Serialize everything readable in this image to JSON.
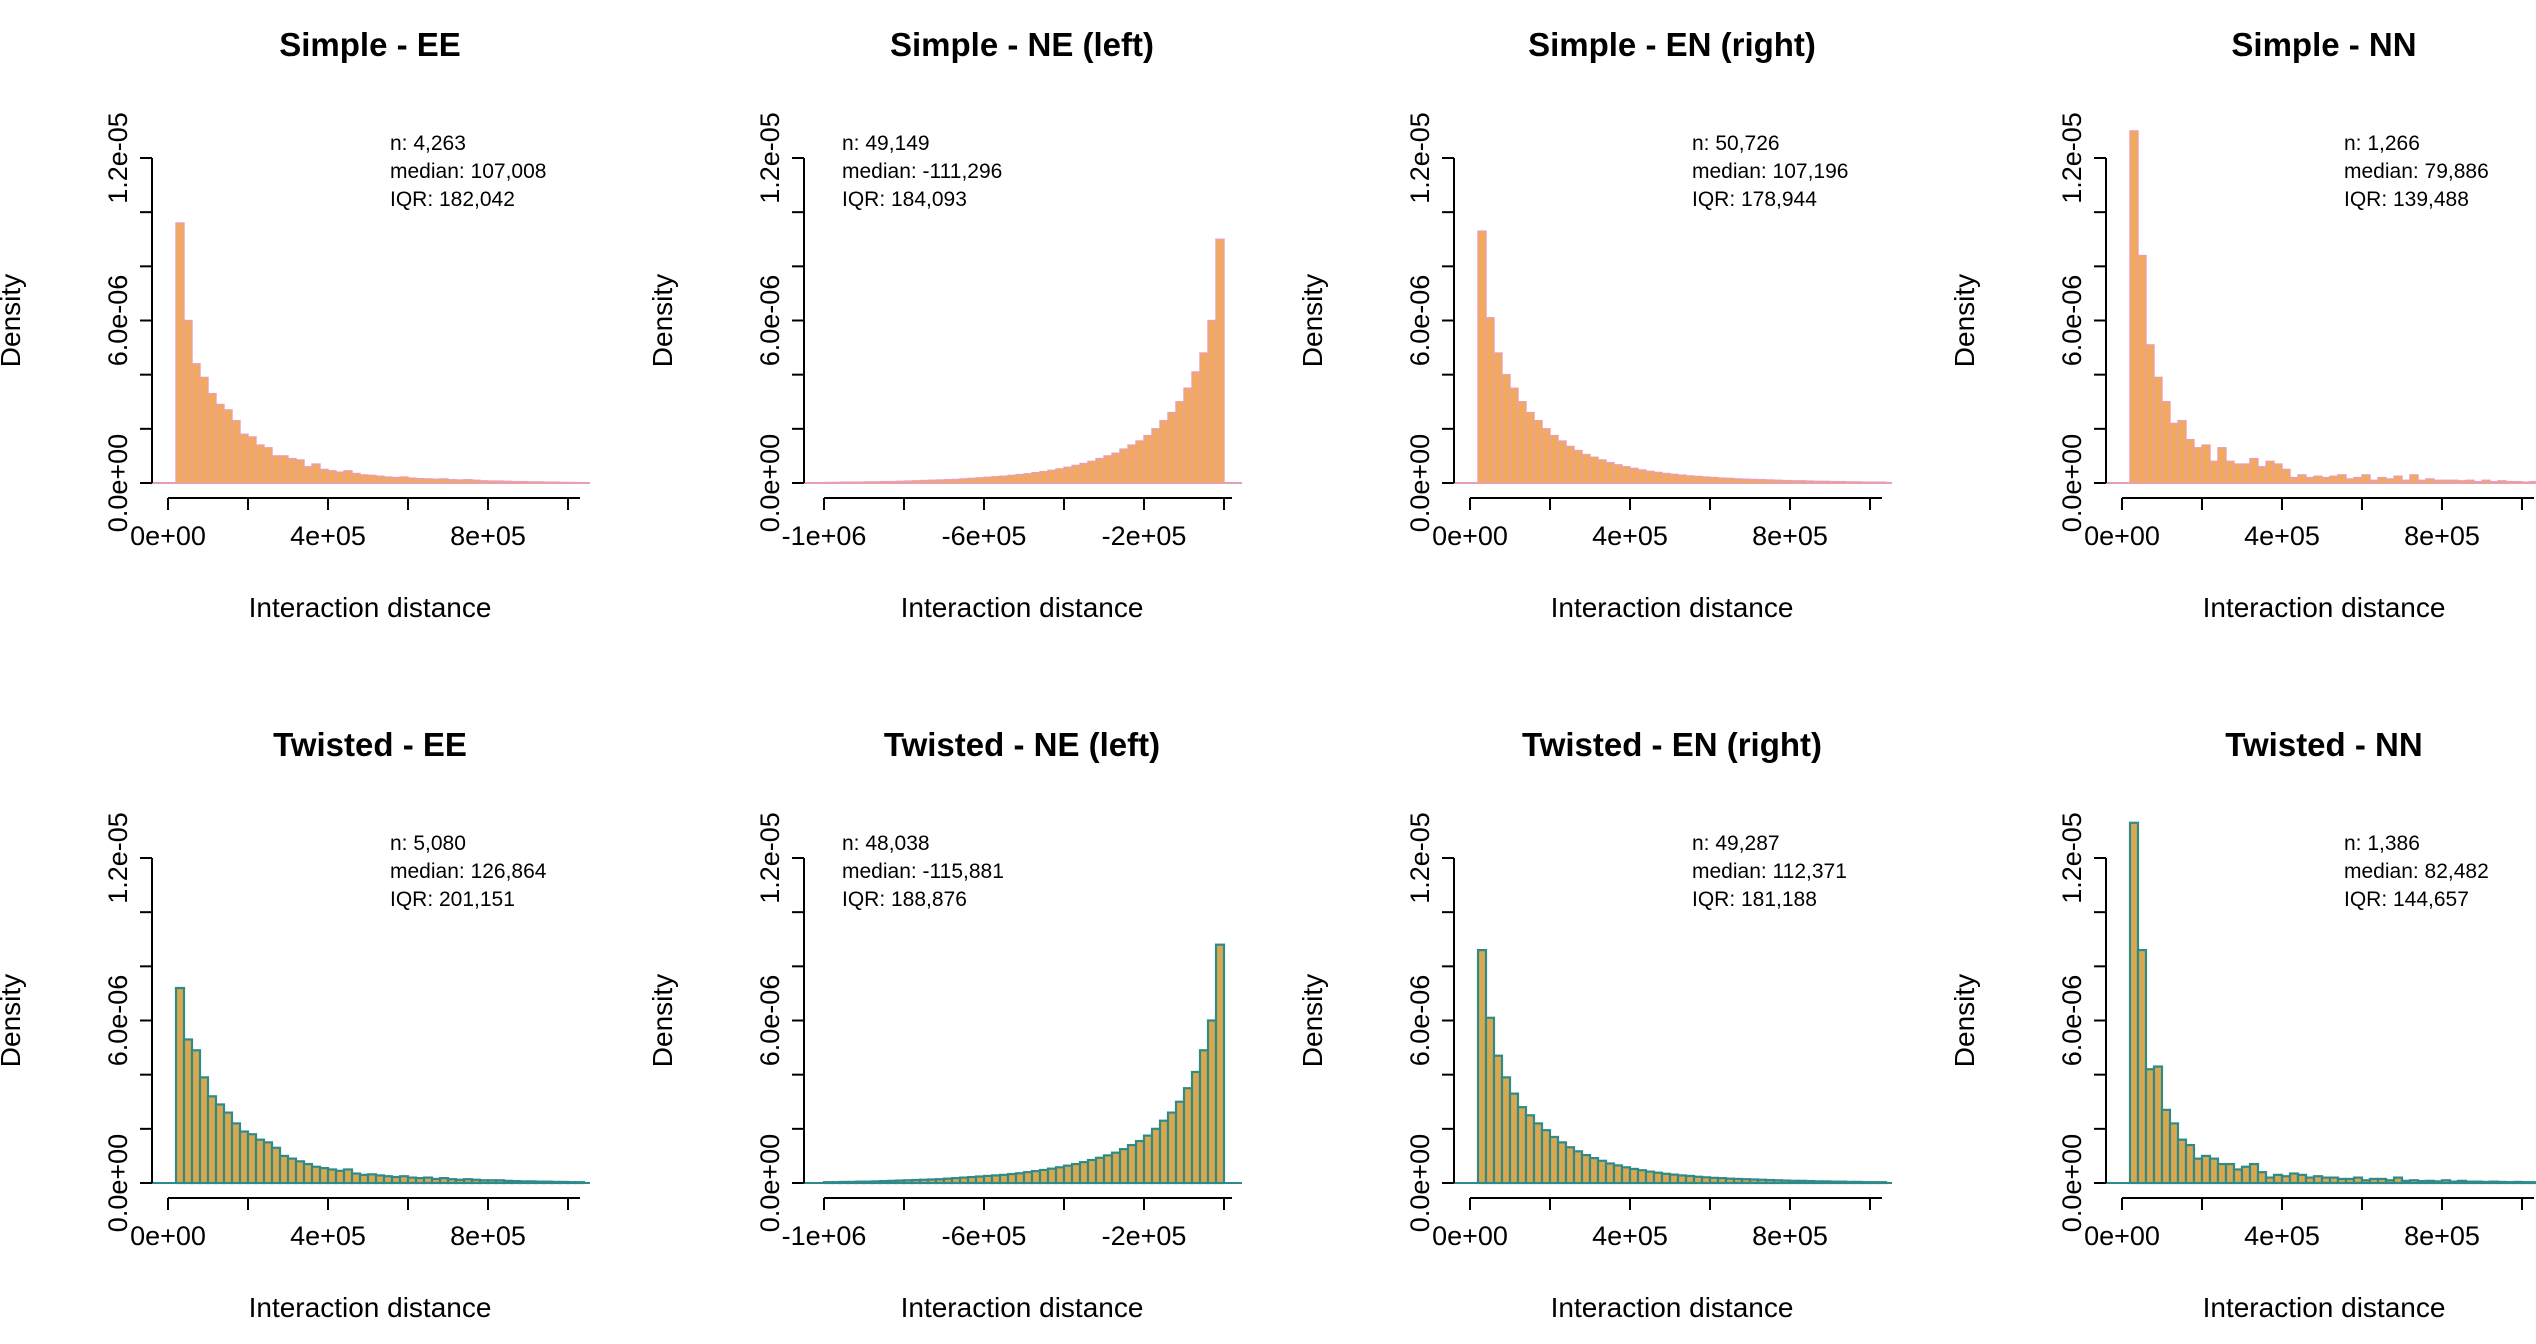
{
  "figure": {
    "chart_data": [
      {
        "type": "bar",
        "row": "simple",
        "title": "Simple - EE",
        "xlabel": "Interaction distance",
        "ylabel": "Density",
        "x_ticks": [
          0,
          400000,
          800000
        ],
        "x_tick_labels": [
          "0e+00",
          "4e+05",
          "8e+05"
        ],
        "xlim": [
          -20000,
          1030000
        ],
        "y_ticks": [
          0,
          2e-06,
          4e-06,
          6e-06,
          8e-06,
          1e-05,
          1.2e-05
        ],
        "y_tick_labels": [
          "0.0e+00",
          "",
          "",
          "6.0e-06",
          "",
          "",
          "1.2e-05"
        ],
        "ylim": [
          0,
          1.2e-05
        ],
        "bin_start": 20000,
        "bin_width": 20000,
        "values": [
          9.6e-06,
          6e-06,
          4.4e-06,
          3.9e-06,
          3.3e-06,
          2.9e-06,
          2.7e-06,
          2.3e-06,
          1.8e-06,
          1.7e-06,
          1.4e-06,
          1.3e-06,
          1e-06,
          1e-06,
          9e-07,
          8.5e-07,
          6e-07,
          7e-07,
          5e-07,
          4.5e-07,
          4e-07,
          4.5e-07,
          3.5e-07,
          3e-07,
          2.8e-07,
          2.5e-07,
          2.2e-07,
          2e-07,
          2.2e-07,
          1.8e-07,
          1.6e-07,
          1.5e-07,
          1.4e-07,
          1.5e-07,
          1.2e-07,
          1.1e-07,
          1.2e-07,
          1e-07,
          8e-08,
          7e-08,
          7e-08,
          6e-08,
          5e-08,
          5e-08,
          4e-08,
          4e-08,
          3e-08,
          3e-08,
          2e-08,
          2e-08,
          1e-08
        ],
        "stats": [
          "n: 4,263",
          "median: 107,008",
          "IQR: 182,042"
        ]
      },
      {
        "type": "bar",
        "row": "simple",
        "title": "Simple - NE (left)",
        "xlabel": "Interaction distance",
        "ylabel": "Density",
        "x_ticks": [
          -1000000,
          -600000,
          -200000
        ],
        "x_tick_labels": [
          "-1e+06",
          "-6e+05",
          "-2e+05"
        ],
        "xlim": [
          -1030000,
          20000
        ],
        "y_ticks": [
          0,
          2e-06,
          4e-06,
          6e-06,
          8e-06,
          1e-05,
          1.2e-05
        ],
        "y_tick_labels": [
          "0.0e+00",
          "",
          "",
          "6.0e-06",
          "",
          "",
          "1.2e-05"
        ],
        "ylim": [
          0,
          1.2e-05
        ],
        "bin_start": -1000000,
        "bin_width": 20000,
        "values": [
          2e-08,
          2e-08,
          3e-08,
          3e-08,
          3e-08,
          4e-08,
          4e-08,
          5e-08,
          5e-08,
          6e-08,
          7e-08,
          8e-08,
          9e-08,
          1e-07,
          1.1e-07,
          1.2e-07,
          1.3e-07,
          1.5e-07,
          1.7e-07,
          1.9e-07,
          2.1e-07,
          2.3e-07,
          2.5e-07,
          2.8e-07,
          3.1e-07,
          3.4e-07,
          3.8e-07,
          4.2e-07,
          4.7e-07,
          5.2e-07,
          5.8e-07,
          6.5e-07,
          7.2e-07,
          8e-07,
          9e-07,
          1e-06,
          1.1e-06,
          1.25e-06,
          1.4e-06,
          1.55e-06,
          1.75e-06,
          2e-06,
          2.3e-06,
          2.6e-06,
          3e-06,
          3.5e-06,
          4.1e-06,
          4.8e-06,
          6e-06,
          9e-06
        ],
        "stats": [
          "n: 49,149",
          "median: -111,296",
          "IQR: 184,093"
        ]
      },
      {
        "type": "bar",
        "row": "simple",
        "title": "Simple - EN (right)",
        "xlabel": "Interaction distance",
        "ylabel": "Density",
        "x_ticks": [
          0,
          400000,
          800000
        ],
        "x_tick_labels": [
          "0e+00",
          "4e+05",
          "8e+05"
        ],
        "xlim": [
          -20000,
          1030000
        ],
        "y_ticks": [
          0,
          2e-06,
          4e-06,
          6e-06,
          8e-06,
          1e-05,
          1.2e-05
        ],
        "y_tick_labels": [
          "0.0e+00",
          "",
          "",
          "6.0e-06",
          "",
          "",
          "1.2e-05"
        ],
        "ylim": [
          0,
          1.2e-05
        ],
        "bin_start": 20000,
        "bin_width": 20000,
        "values": [
          9.3e-06,
          6.1e-06,
          4.8e-06,
          4e-06,
          3.5e-06,
          3e-06,
          2.6e-06,
          2.3e-06,
          2e-06,
          1.75e-06,
          1.55e-06,
          1.35e-06,
          1.2e-06,
          1.05e-06,
          9.5e-07,
          8.5e-07,
          7.5e-07,
          6.7e-07,
          6e-07,
          5.4e-07,
          4.8e-07,
          4.3e-07,
          3.9e-07,
          3.5e-07,
          3.2e-07,
          2.9e-07,
          2.6e-07,
          2.4e-07,
          2.2e-07,
          2e-07,
          1.8e-07,
          1.7e-07,
          1.5e-07,
          1.4e-07,
          1.3e-07,
          1.2e-07,
          1.1e-07,
          1e-07,
          9e-08,
          8e-08,
          8e-08,
          7e-08,
          6e-08,
          6e-08,
          5e-08,
          5e-08,
          4e-08,
          4e-08,
          3e-08,
          3e-08,
          3e-08
        ],
        "stats": [
          "n: 50,726",
          "median: 107,196",
          "IQR: 178,944"
        ]
      },
      {
        "type": "bar",
        "row": "simple",
        "title": "Simple - NN",
        "xlabel": "Interaction distance",
        "ylabel": "Density",
        "x_ticks": [
          0,
          400000,
          800000
        ],
        "x_tick_labels": [
          "0e+00",
          "4e+05",
          "8e+05"
        ],
        "xlim": [
          -20000,
          1030000
        ],
        "y_ticks": [
          0,
          2e-06,
          4e-06,
          6e-06,
          8e-06,
          1e-05,
          1.2e-05
        ],
        "y_tick_labels": [
          "0.0e+00",
          "",
          "",
          "6.0e-06",
          "",
          "",
          "1.2e-05"
        ],
        "ylim": [
          0,
          1.2e-05
        ],
        "bin_start": 20000,
        "bin_width": 20000,
        "values": [
          1.3e-05,
          8.4e-06,
          5.1e-06,
          3.9e-06,
          3e-06,
          2.2e-06,
          2.3e-06,
          1.6e-06,
          1.3e-06,
          1.4e-06,
          8e-07,
          1.3e-06,
          8e-07,
          7e-07,
          7e-07,
          9e-07,
          6e-07,
          8e-07,
          7e-07,
          5e-07,
          2e-07,
          3e-07,
          2e-07,
          2.5e-07,
          2e-07,
          2.5e-07,
          3e-07,
          1.5e-07,
          2e-07,
          3e-07,
          1e-07,
          2e-07,
          1.5e-07,
          2.5e-07,
          1e-07,
          3e-07,
          1e-07,
          1.5e-07,
          1e-07,
          1e-07,
          1e-07,
          8e-08,
          1e-07,
          5e-08,
          1e-07,
          5e-08,
          8e-08,
          5e-08,
          5e-08,
          3e-08,
          5e-08
        ],
        "stats": [
          "n: 1,266",
          "median: 79,886",
          "IQR: 139,488"
        ]
      },
      {
        "type": "bar",
        "row": "twisted",
        "title": "Twisted - EE",
        "xlabel": "Interaction distance",
        "ylabel": "Density",
        "x_ticks": [
          0,
          400000,
          800000
        ],
        "x_tick_labels": [
          "0e+00",
          "4e+05",
          "8e+05"
        ],
        "xlim": [
          -20000,
          1030000
        ],
        "y_ticks": [
          0,
          2e-06,
          4e-06,
          6e-06,
          8e-06,
          1e-05,
          1.2e-05
        ],
        "y_tick_labels": [
          "0.0e+00",
          "",
          "",
          "6.0e-06",
          "",
          "",
          "1.2e-05"
        ],
        "ylim": [
          0,
          1.2e-05
        ],
        "bin_start": 20000,
        "bin_width": 20000,
        "values": [
          7.2e-06,
          5.3e-06,
          4.9e-06,
          3.9e-06,
          3.2e-06,
          2.9e-06,
          2.6e-06,
          2.2e-06,
          1.9e-06,
          1.8e-06,
          1.6e-06,
          1.5e-06,
          1.3e-06,
          1e-06,
          9e-07,
          8e-07,
          7e-07,
          6e-07,
          5.5e-07,
          5e-07,
          4.5e-07,
          5e-07,
          3.5e-07,
          3e-07,
          3.2e-07,
          2.8e-07,
          2.5e-07,
          2.2e-07,
          2.5e-07,
          2e-07,
          1.8e-07,
          2e-07,
          1.5e-07,
          1.8e-07,
          1.4e-07,
          1.2e-07,
          1.4e-07,
          1.2e-07,
          1e-07,
          1e-07,
          1e-07,
          8e-08,
          7e-08,
          6e-08,
          6e-08,
          5e-08,
          5e-08,
          4e-08,
          4e-08,
          3e-08,
          3e-08
        ],
        "stats": [
          "n: 5,080",
          "median: 126,864",
          "IQR: 201,151"
        ]
      },
      {
        "type": "bar",
        "row": "twisted",
        "title": "Twisted - NE (left)",
        "xlabel": "Interaction distance",
        "ylabel": "Density",
        "x_ticks": [
          -1000000,
          -600000,
          -200000
        ],
        "x_tick_labels": [
          "-1e+06",
          "-6e+05",
          "-2e+05"
        ],
        "xlim": [
          -1030000,
          20000
        ],
        "y_ticks": [
          0,
          2e-06,
          4e-06,
          6e-06,
          8e-06,
          1e-05,
          1.2e-05
        ],
        "y_tick_labels": [
          "0.0e+00",
          "",
          "",
          "6.0e-06",
          "",
          "",
          "1.2e-05"
        ],
        "ylim": [
          0,
          1.2e-05
        ],
        "bin_start": -1000000,
        "bin_width": 20000,
        "values": [
          3e-08,
          3e-08,
          4e-08,
          4e-08,
          5e-08,
          5e-08,
          6e-08,
          7e-08,
          8e-08,
          9e-08,
          1e-07,
          1.1e-07,
          1.2e-07,
          1.3e-07,
          1.4e-07,
          1.6e-07,
          1.8e-07,
          2e-07,
          2.2e-07,
          2.4e-07,
          2.6e-07,
          2.8e-07,
          3e-07,
          3.3e-07,
          3.6e-07,
          4e-07,
          4.4e-07,
          4.8e-07,
          5.3e-07,
          5.8e-07,
          6.4e-07,
          7e-07,
          7.7e-07,
          8.5e-07,
          9.3e-07,
          1.02e-06,
          1.12e-06,
          1.25e-06,
          1.4e-06,
          1.55e-06,
          1.75e-06,
          2e-06,
          2.3e-06,
          2.6e-06,
          3e-06,
          3.5e-06,
          4.1e-06,
          4.9e-06,
          6e-06,
          8.8e-06
        ],
        "stats": [
          "n: 48,038",
          "median: -115,881",
          "IQR: 188,876"
        ]
      },
      {
        "type": "bar",
        "row": "twisted",
        "title": "Twisted - EN (right)",
        "xlabel": "Interaction distance",
        "ylabel": "Density",
        "x_ticks": [
          0,
          400000,
          800000
        ],
        "x_tick_labels": [
          "0e+00",
          "4e+05",
          "8e+05"
        ],
        "xlim": [
          -20000,
          1030000
        ],
        "y_ticks": [
          0,
          2e-06,
          4e-06,
          6e-06,
          8e-06,
          1e-05,
          1.2e-05
        ],
        "y_tick_labels": [
          "0.0e+00",
          "",
          "",
          "6.0e-06",
          "",
          "",
          "1.2e-05"
        ],
        "ylim": [
          0,
          1.2e-05
        ],
        "bin_start": 20000,
        "bin_width": 20000,
        "values": [
          8.6e-06,
          6.1e-06,
          4.7e-06,
          3.9e-06,
          3.3e-06,
          2.8e-06,
          2.5e-06,
          2.2e-06,
          1.95e-06,
          1.7e-06,
          1.5e-06,
          1.32e-06,
          1.17e-06,
          1.03e-06,
          9.2e-07,
          8.2e-07,
          7.2e-07,
          6.5e-07,
          5.8e-07,
          5.2e-07,
          4.7e-07,
          4.2e-07,
          3.8e-07,
          3.4e-07,
          3.1e-07,
          2.8e-07,
          2.6e-07,
          2.3e-07,
          2.1e-07,
          1.9e-07,
          1.8e-07,
          1.6e-07,
          1.5e-07,
          1.4e-07,
          1.3e-07,
          1.2e-07,
          1.1e-07,
          1e-07,
          9e-08,
          8e-08,
          8e-08,
          7e-08,
          6e-08,
          6e-08,
          5e-08,
          5e-08,
          4e-08,
          4e-08,
          3e-08,
          3e-08,
          3e-08
        ],
        "stats": [
          "n: 49,287",
          "median: 112,371",
          "IQR: 181,188"
        ]
      },
      {
        "type": "bar",
        "row": "twisted",
        "title": "Twisted - NN",
        "xlabel": "Interaction distance",
        "ylabel": "Density",
        "x_ticks": [
          0,
          400000,
          800000
        ],
        "x_tick_labels": [
          "0e+00",
          "4e+05",
          "8e+05"
        ],
        "xlim": [
          -20000,
          1030000
        ],
        "y_ticks": [
          0,
          2e-06,
          4e-06,
          6e-06,
          8e-06,
          1e-05,
          1.2e-05
        ],
        "y_tick_labels": [
          "0.0e+00",
          "",
          "",
          "6.0e-06",
          "",
          "",
          "1.2e-05"
        ],
        "ylim": [
          0,
          1.2e-05
        ],
        "bin_start": 20000,
        "bin_width": 20000,
        "values": [
          1.33e-05,
          8.6e-06,
          4.2e-06,
          4.3e-06,
          2.7e-06,
          2.2e-06,
          1.6e-06,
          1.4e-06,
          9e-07,
          1e-06,
          9e-07,
          7e-07,
          7e-07,
          5e-07,
          6e-07,
          7e-07,
          4e-07,
          2e-07,
          3e-07,
          2.5e-07,
          3.5e-07,
          3e-07,
          2e-07,
          2.5e-07,
          2e-07,
          2e-07,
          1.5e-07,
          1.5e-07,
          2e-07,
          1e-07,
          1.5e-07,
          1.5e-07,
          1e-07,
          2e-07,
          8e-08,
          1e-07,
          7e-08,
          8e-08,
          6e-08,
          1e-07,
          5e-08,
          8e-08,
          5e-08,
          5e-08,
          4e-08,
          5e-08,
          4e-08,
          3e-08,
          4e-08,
          3e-08,
          3e-08
        ],
        "stats": [
          "n: 1,386",
          "median: 82,482",
          "IQR: 144,657"
        ]
      }
    ],
    "colors": {
      "simple_fill": "#f2a95a",
      "simple_edge": "#e8a0b0",
      "twisted_fill": "#d9a84e",
      "twisted_edge": "#2f8a8a"
    }
  }
}
